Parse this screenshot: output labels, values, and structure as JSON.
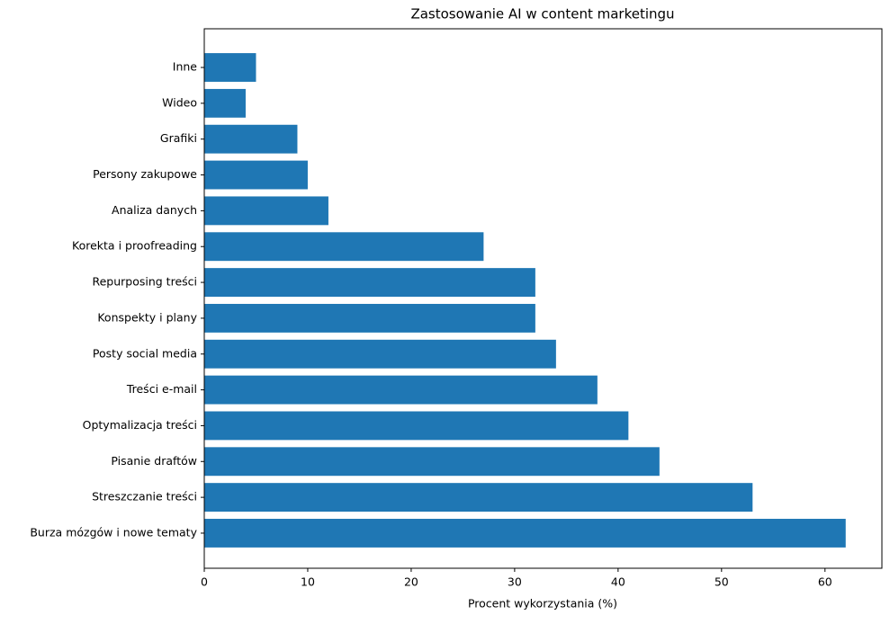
{
  "chart_data": {
    "type": "barh",
    "title": "Zastosowanie AI w content marketingu",
    "x_label": "Procent wykorzystania (%)",
    "categories": [
      "Burza mózgów i nowe tematy",
      "Streszczanie treści",
      "Pisanie draftów",
      "Optymalizacja treści",
      "Treści e-mail",
      "Posty social media",
      "Konspekty i plany",
      "Repurposing treści",
      "Korekta i proofreading",
      "Analiza danych",
      "Persony zakupowe",
      "Grafiki",
      "Wideo",
      "Inne"
    ],
    "values": [
      62,
      53,
      44,
      41,
      38,
      34,
      32,
      32,
      27,
      12,
      10,
      9,
      4,
      5
    ],
    "color": "#1f77b4",
    "xlim": [
      0,
      65.5
    ],
    "xticks": [
      0,
      10,
      20,
      30,
      40,
      50,
      60
    ],
    "grid": false
  }
}
